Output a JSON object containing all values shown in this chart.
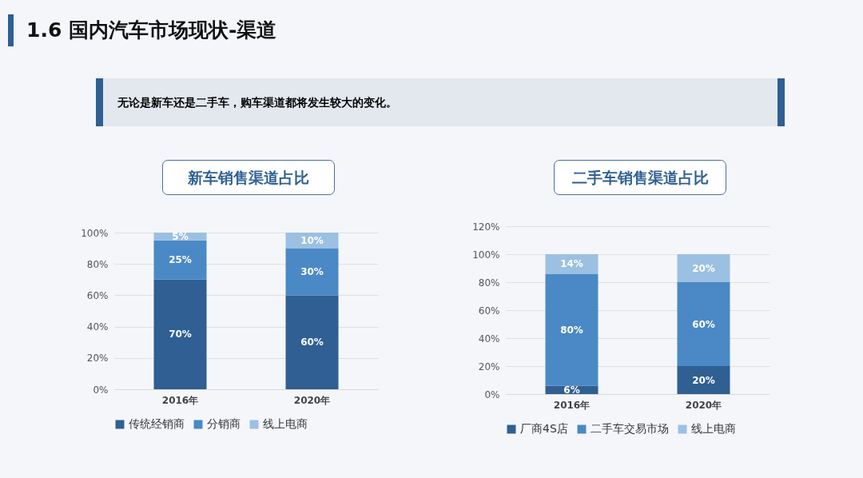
{
  "chart_data": [
    {
      "type": "bar",
      "title": "新车销售渠道占比",
      "annotations": [
        "1.6 国内汽车市场现状-渠道",
        "无论是新车还是二手车，购车渠道都将发生较大的变化。"
      ],
      "categories": [
        "2016年",
        "2020年"
      ],
      "stacked": true,
      "grid": "y",
      "legend": "bottom",
      "ylim": [
        0,
        100
      ],
      "yticks": [
        {
          "value": 0,
          "label": "0%"
        },
        {
          "value": 20,
          "label": "20%"
        },
        {
          "value": 40,
          "label": "40%"
        },
        {
          "value": 60,
          "label": "60%"
        },
        {
          "value": 80,
          "label": "80%"
        },
        {
          "value": 100,
          "label": "100%"
        }
      ],
      "series": [
        {
          "name": "传统经销商",
          "color": "#2f5f93",
          "values": [
            70,
            60
          ],
          "value_labels": [
            "70%",
            "60%"
          ]
        },
        {
          "name": "分销商",
          "color": "#4a89c5",
          "values": [
            25,
            30
          ],
          "value_labels": [
            "25%",
            "30%"
          ]
        },
        {
          "name": "线上电商",
          "color": "#9cc0e2",
          "values": [
            5,
            10
          ],
          "value_labels": [
            "5%",
            "10%"
          ]
        }
      ]
    },
    {
      "type": "bar",
      "title": "二手车销售渠道占比",
      "categories": [
        "2016年",
        "2020年"
      ],
      "stacked": true,
      "grid": "y",
      "legend": "bottom",
      "ylim": [
        0,
        120
      ],
      "yticks": [
        {
          "value": 0,
          "label": "0%"
        },
        {
          "value": 20,
          "label": "20%"
        },
        {
          "value": 40,
          "label": "40%"
        },
        {
          "value": 60,
          "label": "60%"
        },
        {
          "value": 80,
          "label": "80%"
        },
        {
          "value": 100,
          "label": "100%"
        },
        {
          "value": 120,
          "label": "120%"
        }
      ],
      "series": [
        {
          "name": "厂商4S店",
          "color": "#2f5f93",
          "values": [
            6,
            20
          ],
          "value_labels": [
            "6%",
            "20%"
          ]
        },
        {
          "name": "二手车交易市场",
          "color": "#4a89c5",
          "values": [
            80,
            60
          ],
          "value_labels": [
            "80%",
            "60%"
          ]
        },
        {
          "name": "线上电商",
          "color": "#9cc0e2",
          "values": [
            14,
            20
          ],
          "value_labels": [
            "14%",
            "20%"
          ]
        }
      ]
    }
  ]
}
